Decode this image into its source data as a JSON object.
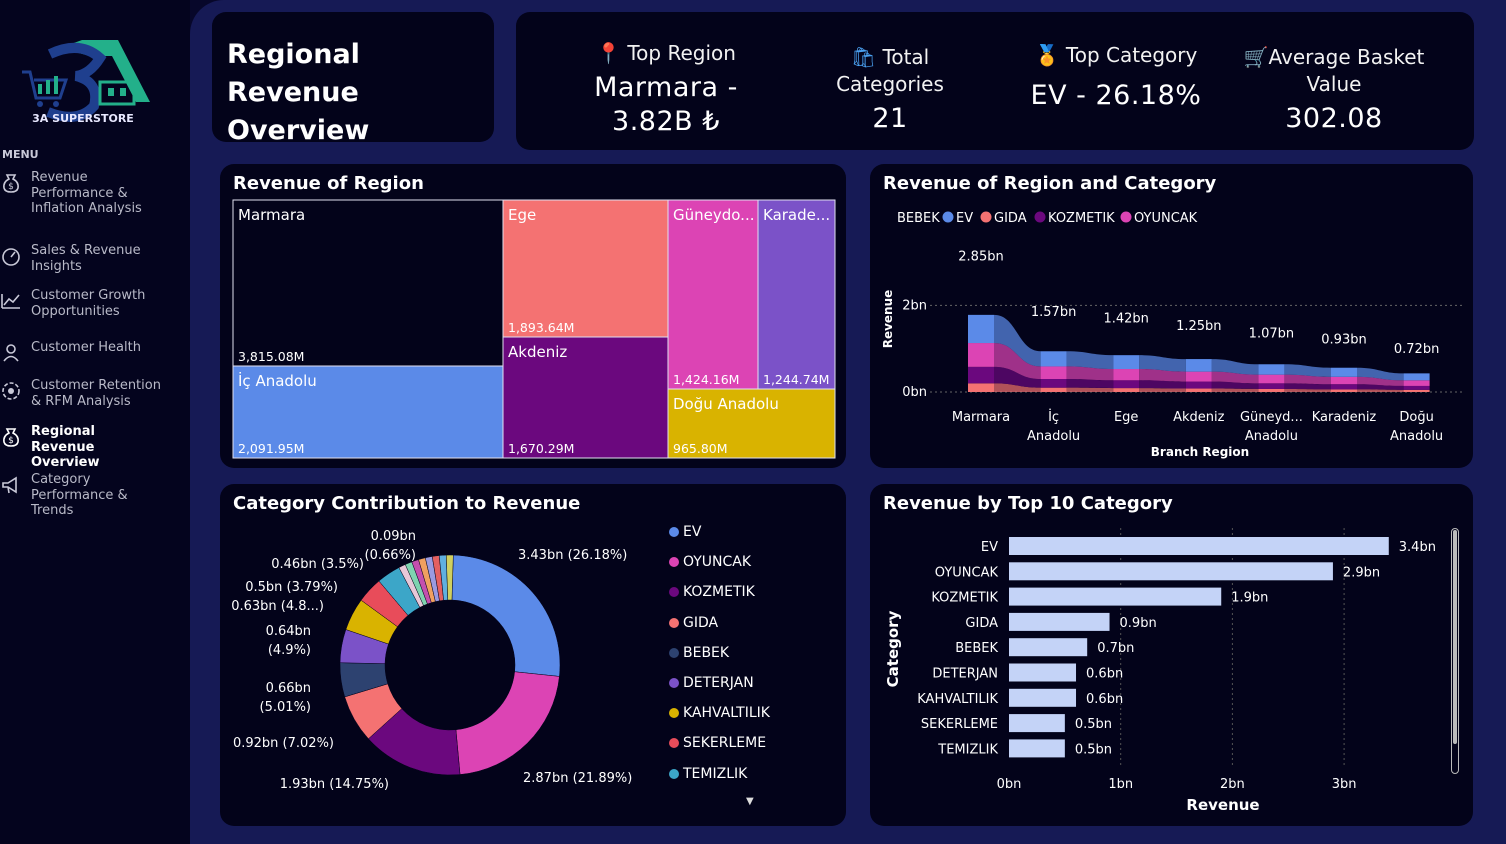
{
  "logo": {
    "main": "3A",
    "sub": "3A SUPERSTORE"
  },
  "menu": {
    "title": "MENU",
    "items": [
      {
        "label": "Revenue Performance & Inflation Analysis",
        "icon": "money-bag-icon"
      },
      {
        "label": "Sales & Revenue Insights",
        "icon": "gauge-icon"
      },
      {
        "label": "Customer Growth Opportunities",
        "icon": "trend-line-icon"
      },
      {
        "label": "Customer Health",
        "icon": "customer-icon"
      },
      {
        "label": "Customer Retention & RFM Analysis",
        "icon": "retention-icon"
      },
      {
        "label": "Regional Revenue Overview",
        "icon": "money-bag-icon",
        "active": true
      },
      {
        "label": "Category Performance & Trends",
        "icon": "megaphone-icon"
      }
    ]
  },
  "page": {
    "title_line1": "Regional Revenue",
    "title_line2": "Overview"
  },
  "kpis": [
    {
      "icon": "pin-icon",
      "label": "Top Region",
      "value_line1": "Marmara -",
      "value_line2": "3.82B ₺"
    },
    {
      "icon": "shopping-bag-icon",
      "label_line1": "Total",
      "label_line2": "Categories",
      "value": "21"
    },
    {
      "icon": "medal-icon",
      "label": "Top Category",
      "value": "EV - 26.18%"
    },
    {
      "icon": "cart-icon",
      "label_line1": "Average Basket",
      "label_line2": "Value",
      "value": "302.08"
    }
  ],
  "colors": {
    "marmara": "#03031a",
    "ic_anadolu": "#5b8ae8",
    "ege": "#f47272",
    "akdeniz": "#6b087e",
    "guneydogu": "#dc44b4",
    "karadeniz": "#7b52c8",
    "dogu": "#d9b300",
    "ev": "#5b8ae8",
    "oyuncak": "#dc44b4",
    "kozmetik": "#6b087e",
    "gida": "#f47272",
    "bebek": "#2d4270",
    "deterjan": "#7b52c8",
    "kahvaltilik": "#d9b300",
    "sekerleme": "#e84c5a",
    "temizlik": "#3ca6c8",
    "bar": "#c4d3f7"
  },
  "treemap": {
    "title": "Revenue of Region",
    "cells": [
      {
        "name": "Marmara",
        "value": "3,815.08M"
      },
      {
        "name": "İç Anadolu",
        "value": "2,091.95M"
      },
      {
        "name": "Ege",
        "value": "1,893.64M"
      },
      {
        "name": "Akdeniz",
        "value": "1,670.29M"
      },
      {
        "name": "Güneydo...",
        "value": "1,424.16M"
      },
      {
        "name": "Karade...",
        "value": "1,244.74M"
      },
      {
        "name": "Doğu Anadolu",
        "value": "965.80M"
      }
    ]
  },
  "ribbon": {
    "title": "Revenue of Region and Category",
    "legend": {
      "title": "BEBEK",
      "items": [
        "EV",
        "GIDA",
        "KOZMETIK",
        "OYUNCAK"
      ]
    },
    "ylabel": "Revenue",
    "xlabel": "Branch Region",
    "ticks": [
      "2bn",
      "0bn"
    ],
    "categories": [
      {
        "line1": "Marmara",
        "line2": "",
        "total_label": "2.85bn"
      },
      {
        "line1": "İç",
        "line2": "Anadolu",
        "total_label": "1.57bn"
      },
      {
        "line1": "Ege",
        "line2": "",
        "total_label": "1.42bn"
      },
      {
        "line1": "Akdeniz",
        "line2": "",
        "total_label": "1.25bn"
      },
      {
        "line1": "Güneyd...",
        "line2": "Anadolu",
        "total_label": "1.07bn"
      },
      {
        "line1": "Karadeniz",
        "line2": "",
        "total_label": "0.93bn"
      },
      {
        "line1": "Doğu",
        "line2": "Anadolu",
        "total_label": "0.72bn"
      }
    ]
  },
  "donut": {
    "title": "Category Contribution to Revenue",
    "slice_labels": [
      {
        "line1": "3.43bn (26.18%)",
        "line2": ""
      },
      {
        "line1": "2.87bn (21.89%)",
        "line2": ""
      },
      {
        "line1": "1.93bn (14.75%)",
        "line2": ""
      },
      {
        "line1": "0.92bn (7.02%)",
        "line2": ""
      },
      {
        "line1": "0.66bn",
        "line2": "(5.01%)"
      },
      {
        "line1": "0.64bn",
        "line2": "(4.9%)"
      },
      {
        "line1": "0.63bn (4.8...)",
        "line2": ""
      },
      {
        "line1": "0.5bn (3.79%)",
        "line2": ""
      },
      {
        "line1": "0.46bn (3.5%)",
        "line2": ""
      },
      {
        "line1": "0.09bn",
        "line2": "(0.66%)"
      }
    ],
    "legend": [
      "EV",
      "OYUNCAK",
      "KOZMETIK",
      "GIDA",
      "BEBEK",
      "DETERJAN",
      "KAHVALTILIK",
      "SEKERLEME",
      "TEMIZLIK"
    ]
  },
  "bars": {
    "title": "Revenue by Top 10 Category",
    "ylabel": "Category",
    "xlabel": "Revenue",
    "xticks": [
      "0bn",
      "1bn",
      "2bn",
      "3bn"
    ]
  },
  "chart_data": [
    {
      "type": "table",
      "title": "Revenue of Region",
      "categories": [
        "Marmara",
        "İç Anadolu",
        "Ege",
        "Akdeniz",
        "Güneydoğu Anadolu",
        "Karadeniz",
        "Doğu Anadolu"
      ],
      "values": [
        3815.08,
        2091.95,
        1893.64,
        1670.29,
        1424.16,
        1244.74,
        965.8
      ]
    },
    {
      "type": "area",
      "title": "Revenue of Region and Category",
      "categories": [
        "Marmara",
        "İç Anadolu",
        "Ege",
        "Akdeniz",
        "Güneydoğu Anadolu",
        "Karadeniz",
        "Doğu Anadolu"
      ],
      "ylim": [
        0,
        3
      ],
      "series": [
        {
          "name": "EV",
          "values": [
            0.65,
            0.35,
            0.32,
            0.29,
            0.24,
            0.21,
            0.16
          ]
        },
        {
          "name": "OYUNCAK",
          "values": [
            0.55,
            0.29,
            0.26,
            0.23,
            0.2,
            0.17,
            0.13
          ]
        },
        {
          "name": "KOZMETIK",
          "values": [
            0.38,
            0.2,
            0.18,
            0.16,
            0.13,
            0.12,
            0.09
          ]
        },
        {
          "name": "GIDA",
          "values": [
            0.2,
            0.1,
            0.09,
            0.08,
            0.07,
            0.06,
            0.05
          ]
        }
      ],
      "totals": [
        2.85,
        1.57,
        1.42,
        1.25,
        1.07,
        0.93,
        0.72
      ]
    },
    {
      "type": "pie",
      "title": "Category Contribution to Revenue",
      "categories": [
        "EV",
        "OYUNCAK",
        "KOZMETIK",
        "GIDA",
        "BEBEK",
        "DETERJAN",
        "KAHVALTILIK",
        "SEKERLEME",
        "TEMIZLIK"
      ],
      "values": [
        3.43,
        2.87,
        1.93,
        0.92,
        0.66,
        0.64,
        0.63,
        0.5,
        0.46
      ],
      "percents": [
        26.18,
        21.89,
        14.75,
        7.02,
        5.01,
        4.9,
        4.8,
        3.79,
        3.5
      ],
      "others_percent": 8.16
    },
    {
      "type": "bar",
      "title": "Revenue by Top 10 Category",
      "categories": [
        "EV",
        "OYUNCAK",
        "KOZMETIK",
        "GIDA",
        "BEBEK",
        "DETERJAN",
        "KAHVALTILIK",
        "SEKERLEME",
        "TEMIZLIK"
      ],
      "values": [
        3.4,
        2.9,
        1.9,
        0.9,
        0.7,
        0.6,
        0.6,
        0.5,
        0.5
      ],
      "labels": [
        "3.4bn",
        "2.9bn",
        "1.9bn",
        "0.9bn",
        "0.7bn",
        "0.6bn",
        "0.6bn",
        "0.5bn",
        "0.5bn"
      ],
      "xlim": [
        0,
        3.4
      ],
      "xlabel": "Revenue",
      "ylabel": "Category"
    }
  ]
}
